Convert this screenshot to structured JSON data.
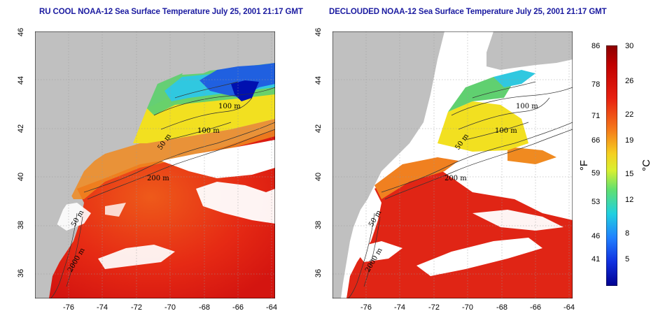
{
  "maps": [
    {
      "title": "RU COOL NOAA-12 Sea Surface Temperature July 25, 2001 21:17 GMT",
      "contour_labels": [
        "100 m",
        "100 m",
        "50 m",
        "200 m",
        "50 m",
        "2000 m"
      ]
    },
    {
      "title": "DECLOUDED NOAA-12 Sea Surface Temperature July 25, 2001 21:17 GMT",
      "contour_labels": [
        "100 m",
        "100 m",
        "50 m",
        "200 m",
        "50 m",
        "2000 m"
      ]
    }
  ],
  "axes": {
    "lon_ticks": [
      "-76",
      "-74",
      "-72",
      "-70",
      "-68",
      "-66",
      "-64"
    ],
    "lat_ticks": [
      "46",
      "44",
      "42",
      "40",
      "38",
      "36"
    ],
    "lon_range": [
      -77.2,
      -63.0
    ],
    "lat_range": [
      35.0,
      46.0
    ]
  },
  "colorbar": {
    "fahrenheit_ticks": [
      "86",
      "78",
      "71",
      "66",
      "59",
      "53",
      "46",
      "41"
    ],
    "celsius_ticks": [
      "30",
      "26",
      "22",
      "19",
      "15",
      "12",
      "8",
      "5"
    ],
    "fahrenheit_unit": "°F",
    "celsius_unit": "°C",
    "range_c": [
      2,
      30
    ]
  },
  "colors": {
    "land": "#c0c0c0",
    "cloud": "#ffffff",
    "title": "#1a1aa0",
    "contour": "#333333",
    "warm": "#e02010",
    "cold": "#0000c0"
  }
}
